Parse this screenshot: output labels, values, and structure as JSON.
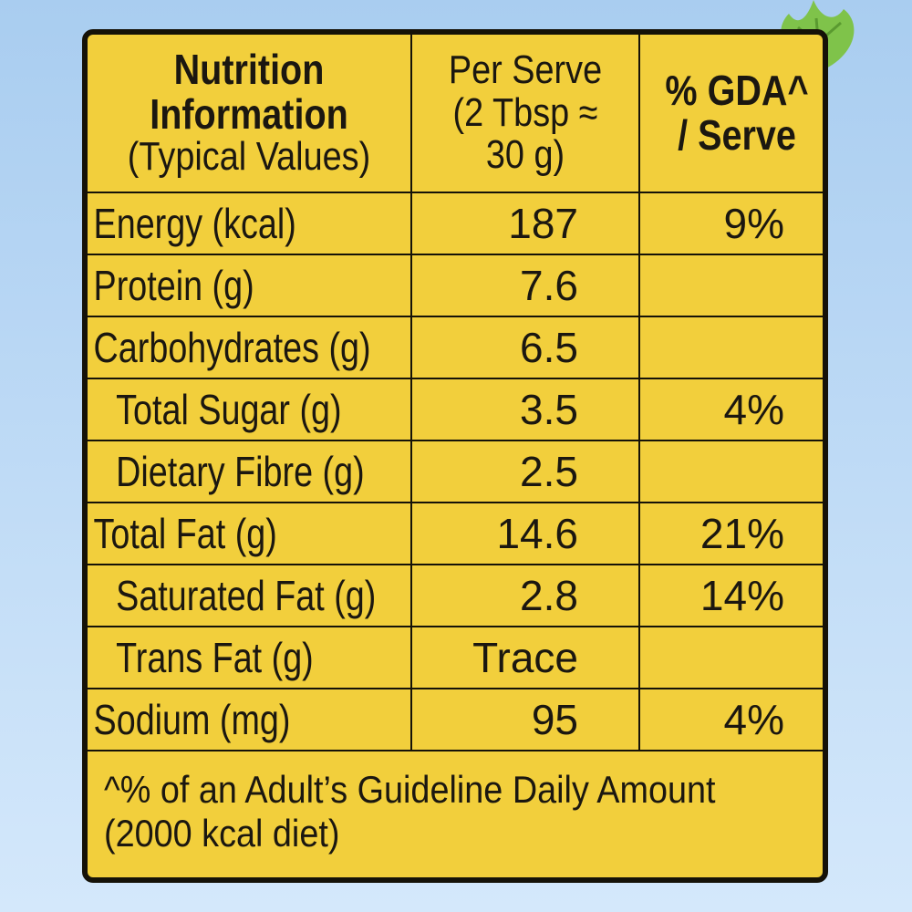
{
  "header": {
    "col1_line1": "Nutrition",
    "col1_line2": "Information",
    "col1_line3": "(Typical Values)",
    "col2_line1": "Per Serve",
    "col2_line2": "(2 Tbsp ≈",
    "col2_line3": "30 g)",
    "col3_line1": "% GDA^",
    "col3_line2": "/ Serve"
  },
  "rows": [
    {
      "name": "Energy (kcal)",
      "value": "187",
      "gda": "9%"
    },
    {
      "name": "Protein (g)",
      "value": "7.6",
      "gda": ""
    },
    {
      "name": "Carbohydrates (g)",
      "value": "6.5",
      "gda": ""
    },
    {
      "name": "Total Sugar (g)",
      "value": "3.5",
      "gda": "4%"
    },
    {
      "name": "Dietary Fibre (g)",
      "value": "2.5",
      "gda": ""
    },
    {
      "name": "Total Fat (g)",
      "value": "14.6",
      "gda": "21%"
    },
    {
      "name": "Saturated Fat (g)",
      "value": "2.8",
      "gda": "14%"
    },
    {
      "name": "Trans Fat (g)",
      "value": "Trace",
      "gda": ""
    },
    {
      "name": "Sodium (mg)",
      "value": "95",
      "gda": "4%"
    }
  ],
  "footnote": {
    "line1": "^% of an Adult’s Guideline Daily Amount",
    "line2": "(2000 kcal diet)"
  },
  "colors": {
    "label_bg": "#f2cf3c",
    "border": "#151208",
    "sky": "#bcd9f5",
    "leaf": "#7fc34a"
  },
  "icons": [
    "leaf-icon"
  ]
}
